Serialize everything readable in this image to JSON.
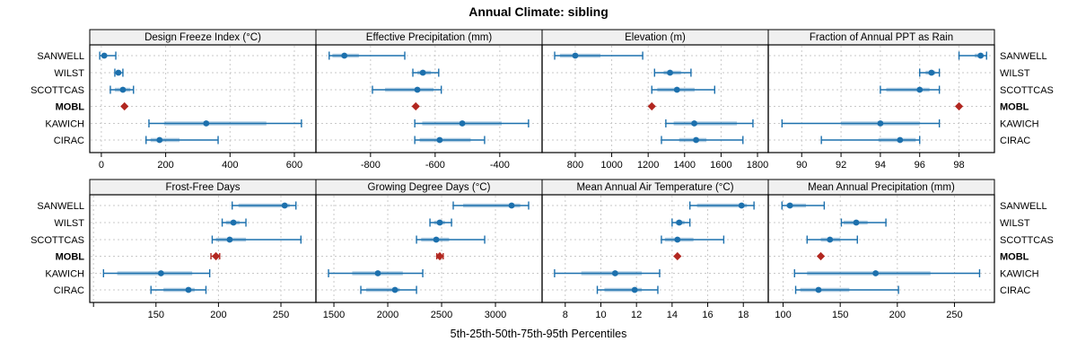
{
  "chart_data": {
    "type": "dotplot",
    "title": "Annual Climate: sibling",
    "caption": "5th-25th-50th-75th-95th Percentiles",
    "percentiles": [
      5,
      25,
      50,
      75,
      95
    ],
    "sites": [
      "SANWELL",
      "WILST",
      "SCOTTCAS",
      "MOBL",
      "KAWICH",
      "CIRAC"
    ],
    "highlight_site": "MOBL",
    "legend_position": "none",
    "grid": true,
    "colors": {
      "point": "#1c70ad",
      "band": "rgba(28,112,173,0.35)",
      "highlight": "#b22720",
      "strip_bg": "#f0f0f0",
      "panel_border": "#000000",
      "gridline": "#c9c9c9",
      "text": "#000000"
    },
    "panels": [
      {
        "label": "Design Freeze Index (°C)",
        "domain": [
          -36,
          667
        ],
        "ticks": [
          0,
          200,
          400,
          600
        ],
        "ticks_unlabeled": [],
        "data": {
          "SANWELL": [
            -5,
            2,
            9,
            18,
            45
          ],
          "WILST": [
            42,
            48,
            53,
            59,
            67
          ],
          "SCOTTCAS": [
            28,
            42,
            67,
            90,
            100
          ],
          "MOBL": [
            72
          ],
          "KAWICH": [
            148,
            195,
            326,
            513,
            622
          ],
          "CIRAC": [
            139,
            153,
            181,
            243,
            363
          ]
        }
      },
      {
        "label": "Effective Precipitation (mm)",
        "domain": [
          -969,
          -269
        ],
        "ticks": [
          -800,
          -600,
          -400
        ],
        "ticks_unlabeled": [],
        "data": {
          "SANWELL": [
            -928,
            -918,
            -881,
            -836,
            -694
          ],
          "WILST": [
            -669,
            -655,
            -638,
            -613,
            -589
          ],
          "SCOTTCAS": [
            -794,
            -755,
            -655,
            -605,
            -581
          ],
          "MOBL": [
            -660
          ],
          "KAWICH": [
            -663,
            -640,
            -516,
            -394,
            -311
          ],
          "CIRAC": [
            -663,
            -648,
            -586,
            -490,
            -447
          ]
        }
      },
      {
        "label": "Elevation (m)",
        "domain": [
          618,
          1859
        ],
        "ticks": [
          800,
          1000,
          1200,
          1400,
          1600,
          1800
        ],
        "ticks_unlabeled": [],
        "data": {
          "SANWELL": [
            687,
            716,
            800,
            938,
            1170
          ],
          "WILST": [
            1235,
            1285,
            1320,
            1380,
            1435
          ],
          "SCOTTCAS": [
            1220,
            1250,
            1358,
            1455,
            1565
          ],
          "MOBL": [
            1220
          ],
          "KAWICH": [
            1297,
            1340,
            1453,
            1687,
            1775
          ],
          "CIRAC": [
            1273,
            1370,
            1463,
            1520,
            1720
          ]
        }
      },
      {
        "label": "Fraction of Annual PPT as Rain",
        "domain": [
          88.3,
          99.8
        ],
        "ticks": [
          90,
          92,
          94,
          96,
          98
        ],
        "ticks_unlabeled": [],
        "data": {
          "SANWELL": [
            98.0,
            98.8,
            99.1,
            99.2,
            99.4
          ],
          "WILST": [
            96.0,
            96.3,
            96.6,
            96.8,
            97.0
          ],
          "SCOTTCAS": [
            94.0,
            94.3,
            96.0,
            96.5,
            97.0
          ],
          "MOBL": [
            98.0
          ],
          "KAWICH": [
            89.0,
            92.0,
            94.0,
            96.0,
            97.0
          ],
          "CIRAC": [
            91.0,
            93.9,
            95.0,
            95.8,
            96.0
          ]
        }
      },
      {
        "label": "Frost-Free Days",
        "domain": [
          97,
          278
        ],
        "ticks": [
          150,
          200,
          250
        ],
        "ticks_unlabeled": [
          100
        ],
        "data": {
          "SANWELL": [
            211,
            216,
            253,
            257,
            262
          ],
          "WILST": [
            203,
            206,
            212,
            217,
            222
          ],
          "SCOTTCAS": [
            195,
            198,
            209,
            222,
            266
          ],
          "MOBL": [
            194,
            198,
            201
          ],
          "KAWICH": [
            108,
            119,
            154,
            179,
            193
          ],
          "CIRAC": [
            146,
            156,
            176,
            181,
            190
          ]
        }
      },
      {
        "label": "Growing Degree Days (°C)",
        "domain": [
          1333,
          3433
        ],
        "ticks": [
          1500,
          2000,
          2500,
          3000
        ],
        "ticks_unlabeled": [],
        "data": {
          "SANWELL": [
            2608,
            2700,
            3150,
            3230,
            3308
          ],
          "WILST": [
            2392,
            2430,
            2483,
            2530,
            2592
          ],
          "SCOTTCAS": [
            2267,
            2310,
            2450,
            2570,
            2900
          ],
          "MOBL": [
            2455,
            2483,
            2515
          ],
          "KAWICH": [
            1450,
            1670,
            1908,
            2140,
            2325
          ],
          "CIRAC": [
            1750,
            1800,
            2067,
            2110,
            2267
          ]
        }
      },
      {
        "label": "Mean Annual Air Temperature (°C)",
        "domain": [
          6.7,
          19.4
        ],
        "ticks": [
          8,
          10,
          12,
          14,
          16,
          18
        ],
        "ticks_unlabeled": [],
        "data": {
          "SANWELL": [
            15.0,
            15.4,
            17.9,
            18.2,
            18.6
          ],
          "WILST": [
            14.0,
            14.2,
            14.4,
            14.7,
            15.0
          ],
          "SCOTTCAS": [
            13.4,
            13.6,
            14.3,
            15.2,
            16.9
          ],
          "MOBL": [
            14.3
          ],
          "KAWICH": [
            7.4,
            8.9,
            10.8,
            12.3,
            13.3
          ],
          "CIRAC": [
            9.8,
            10.2,
            11.9,
            12.3,
            13.2
          ]
        }
      },
      {
        "label": "Mean Annual Precipitation (mm)",
        "domain": [
          87,
          285
        ],
        "ticks": [
          100,
          150,
          200,
          250
        ],
        "ticks_unlabeled": [],
        "data": {
          "SANWELL": [
            99,
            103,
            106,
            120,
            136
          ],
          "WILST": [
            151,
            153,
            164,
            174,
            190
          ],
          "SCOTTCAS": [
            121,
            133,
            141,
            150,
            165
          ],
          "MOBL": [
            133
          ],
          "KAWICH": [
            110,
            121,
            181,
            229,
            272
          ],
          "CIRAC": [
            111,
            115,
            131,
            158,
            201
          ]
        }
      }
    ]
  }
}
